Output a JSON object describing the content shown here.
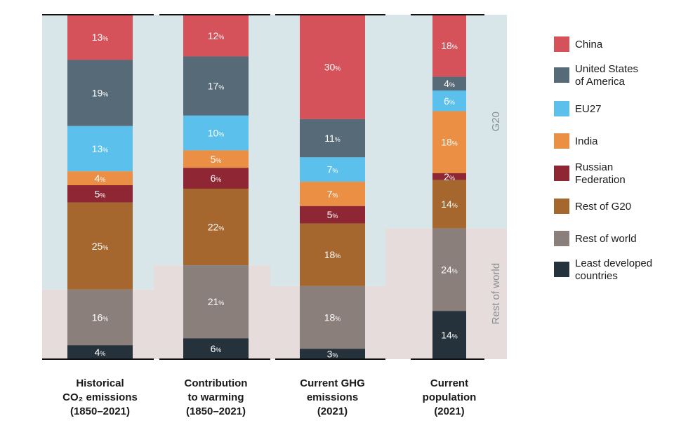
{
  "chart_data": {
    "type": "bar",
    "stacked": true,
    "percent_unit": "%",
    "categories": [
      {
        "lines": [
          "Historical",
          "CO₂ emissions",
          "(1850–2021)"
        ]
      },
      {
        "lines": [
          "Contribution",
          "to warming",
          "(1850–2021)"
        ]
      },
      {
        "lines": [
          "Current GHG",
          "emissions",
          "(2021)"
        ]
      },
      {
        "lines": [
          "Current",
          "population",
          "(2021)"
        ]
      }
    ],
    "series": [
      {
        "name": "China",
        "color": "#D5525B",
        "values": [
          13,
          12,
          30,
          18
        ]
      },
      {
        "name": "United States of America",
        "legend_lines": [
          "United States",
          "of America"
        ],
        "color": "#566A78",
        "values": [
          19,
          17,
          11,
          4
        ]
      },
      {
        "name": "EU27",
        "color": "#5BC0EB",
        "values": [
          13,
          10,
          7,
          6
        ]
      },
      {
        "name": "India",
        "color": "#EA8F44",
        "values": [
          4,
          5,
          7,
          18
        ]
      },
      {
        "name": "Russian Federation",
        "legend_lines": [
          "Russian",
          "Federation"
        ],
        "color": "#8E2634",
        "values": [
          5,
          6,
          5,
          2
        ]
      },
      {
        "name": "Rest of G20",
        "color": "#A5672E",
        "values": [
          25,
          22,
          18,
          14
        ]
      },
      {
        "name": "Rest of world",
        "color": "#8B7F7C",
        "values": [
          16,
          21,
          18,
          24
        ]
      },
      {
        "name": "Least developed countries",
        "legend_lines": [
          "Least developed",
          "countries"
        ],
        "color": "#26323B",
        "values": [
          4,
          6,
          3,
          14
        ]
      }
    ],
    "groups": [
      {
        "name": "G20",
        "color": "#D8E6EA"
      },
      {
        "name": "Rest of world",
        "color": "#E7DCDC"
      }
    ],
    "ylim": [
      0,
      100
    ]
  }
}
